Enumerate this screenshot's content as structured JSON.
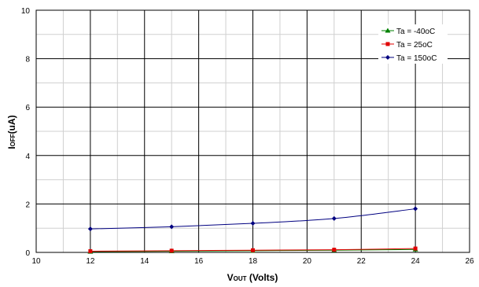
{
  "chart_data": {
    "type": "line",
    "title": "",
    "xlabel_main": "V",
    "xlabel_sub": "OUT",
    "xlabel_rest": " (Volts)",
    "ylabel_main": "I",
    "ylabel_sub": "OFF",
    "ylabel_rest": "(uA)",
    "xlim": [
      10,
      26
    ],
    "ylim": [
      0,
      10
    ],
    "xticks": [
      10,
      12,
      14,
      16,
      18,
      20,
      22,
      24,
      26
    ],
    "yticks": [
      0,
      2,
      4,
      6,
      8,
      10
    ],
    "grid": true,
    "legend_position": "top-right",
    "series": [
      {
        "name": "Ta = -40oC",
        "color": "#008000",
        "marker": "triangle",
        "x": [
          12,
          15,
          18,
          21,
          24
        ],
        "y": [
          0.03,
          0.05,
          0.07,
          0.09,
          0.12
        ]
      },
      {
        "name": "Ta = 25oC",
        "color": "#e00000",
        "marker": "square",
        "x": [
          12,
          15,
          18,
          21,
          24
        ],
        "y": [
          0.05,
          0.07,
          0.09,
          0.11,
          0.16
        ]
      },
      {
        "name": "Ta = 150oC",
        "color": "#000080",
        "marker": "diamond",
        "x": [
          12,
          15,
          18,
          21,
          24
        ],
        "y": [
          0.97,
          1.06,
          1.2,
          1.4,
          1.8
        ]
      }
    ]
  }
}
